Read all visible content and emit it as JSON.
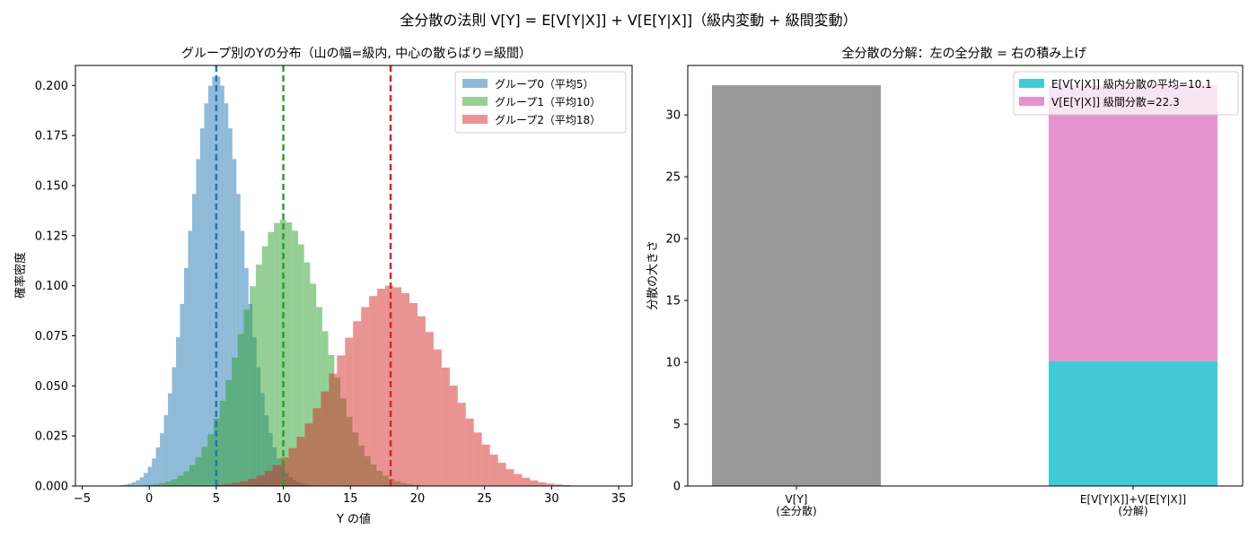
{
  "suptitle": "全分散の法則 V[Y] = E[V[Y|X]] + V[E[Y|X]]（級内変動 + 級間変動）",
  "chart_data": [
    {
      "type": "histogram",
      "title": "グループ別のYの分布（山の幅=級内, 中心の散らばり=級間）",
      "xlabel": "Y の値",
      "ylabel": "確率密度",
      "xlim": [
        -5.5,
        36
      ],
      "ylim": [
        0,
        0.21
      ],
      "xticks": [
        -5,
        0,
        5,
        10,
        15,
        20,
        25,
        30,
        35
      ],
      "yticks": [
        0.0,
        0.025,
        0.05,
        0.075,
        0.1,
        0.125,
        0.15,
        0.175,
        0.2
      ],
      "ytick_labels": [
        "0.000",
        "0.025",
        "0.050",
        "0.075",
        "0.100",
        "0.125",
        "0.150",
        "0.175",
        "0.200"
      ],
      "legend_position": "top-right",
      "grid": false,
      "series": [
        {
          "name": "グループ0（平均5）",
          "mean": 5,
          "sd": 2.0,
          "peak_density": 0.205,
          "range": [
            -2.5,
            12.5
          ],
          "bin_width": 0.3,
          "color": "#1f77b4",
          "mean_line_color": "#1f77b4"
        },
        {
          "name": "グループ1（平均10）",
          "mean": 10,
          "sd": 3.0,
          "peak_density": 0.133,
          "range": [
            -1.5,
            21.5
          ],
          "bin_width": 0.45,
          "color": "#2ca02c",
          "mean_line_color": "#2ca02c"
        },
        {
          "name": "グループ2（平均18）",
          "mean": 18,
          "sd": 4.0,
          "peak_density": 0.1,
          "range": [
            5,
            32
          ],
          "bin_width": 0.6,
          "color": "#d62728",
          "mean_line_color": "#d62728"
        }
      ]
    },
    {
      "type": "bar",
      "title": "全分散の分解：左の全分散 = 右の積み上げ",
      "ylabel": "分散の大きさ",
      "ylim": [
        0,
        34
      ],
      "yticks": [
        0,
        5,
        10,
        15,
        20,
        25,
        30
      ],
      "legend_position": "top-right",
      "grid": false,
      "categories": [
        "V[Y]\n(全分散)",
        "E[V[Y|X]]+V[E[Y|X]]\n(分解)"
      ],
      "bars": [
        {
          "category": 0,
          "segments": [
            {
              "value": 32.4,
              "color": "#999999"
            }
          ]
        },
        {
          "category": 1,
          "segments": [
            {
              "name": "E[V[Y|X]] 級内分散の平均=10.1",
              "value": 10.1,
              "color": "#42cad8"
            },
            {
              "name": "V[E[Y|X]] 級間分散=22.3",
              "value": 22.3,
              "color": "#e693cd"
            }
          ]
        }
      ]
    }
  ]
}
